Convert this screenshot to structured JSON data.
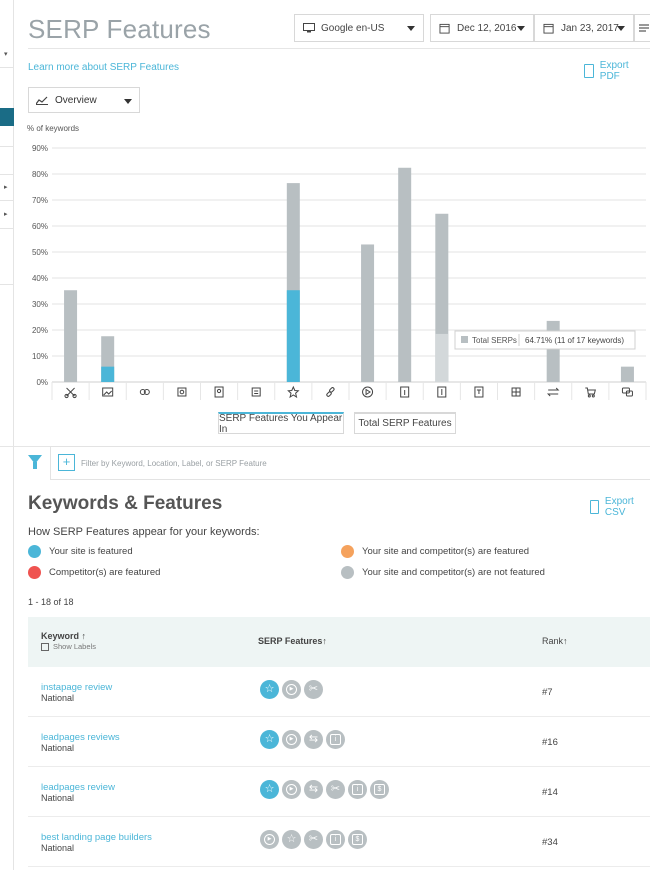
{
  "page": {
    "title": "SERP Features",
    "learn_more": "Learn more about SERP Features",
    "export_pdf": "Export PDF",
    "export_csv": "Export CSV"
  },
  "controls": {
    "engine": "Google en-US",
    "date_from": "Dec 12, 2016",
    "date_to": "Jan 23, 2017",
    "view": "Overview"
  },
  "chart_data": {
    "type": "bar",
    "ylabel": "% of keywords",
    "ylim": [
      0,
      90
    ],
    "yticks": [
      "0%",
      "10%",
      "20%",
      "30%",
      "40%",
      "50%",
      "60%",
      "70%",
      "80%",
      "90%"
    ],
    "categories": [
      "featured-snippet-icon",
      "image-pack-icon",
      "local-pack-icon",
      "reviews-icon",
      "knowledge-panel-icon",
      "news-icon",
      "star-reviews-icon",
      "site-links-icon",
      "video-icon",
      "answer-box-icon",
      "adwords-top-icon",
      "adwords-bottom-icon",
      "carousel-icon",
      "related-questions-icon",
      "shopping-icon",
      "tweets-icon"
    ],
    "series": [
      {
        "name": "Total SERPs",
        "values": [
          35.3,
          17.6,
          0,
          0,
          0,
          0,
          76.5,
          0,
          52.9,
          82.4,
          64.71,
          0,
          0,
          23.5,
          0,
          5.9
        ],
        "color": "#b8bfc2"
      },
      {
        "name": "SERP Features You Appear In",
        "values": [
          0,
          5.9,
          0,
          0,
          0,
          0,
          35.3,
          0,
          0,
          0,
          0,
          0,
          0,
          0,
          0,
          0
        ],
        "color": "#4bb6d8"
      }
    ],
    "tooltip": {
      "label": "Total SERPs",
      "value": "64.71% (11 of 17 keywords)"
    }
  },
  "tabs": [
    "SERP Features You Appear In",
    "Total SERP Features"
  ],
  "filter": {
    "placeholder": "Filter by Keyword, Location, Label, or SERP Feature"
  },
  "section": {
    "heading": "Keywords & Features",
    "description": "How SERP Features appear for your keywords:",
    "legend": [
      {
        "label": "Your site is featured",
        "color": "#4bb6d8"
      },
      {
        "label": "Your site and competitor(s) are featured",
        "color": "#f5a25d"
      },
      {
        "label": "Competitor(s) are featured",
        "color": "#ef5350"
      },
      {
        "label": "Your site and competitor(s) are not featured",
        "color": "#b8bfc2"
      }
    ],
    "count": "1 - 18 of 18"
  },
  "table": {
    "headers": {
      "keyword": "Keyword",
      "features": "SERP Features",
      "rank": "Rank",
      "show_labels": "Show Labels"
    },
    "rows": [
      {
        "keyword": "instapage review",
        "location": "National",
        "rank": "#7",
        "icons": [
          [
            "star",
            "blue"
          ],
          [
            "play",
            "grey"
          ],
          [
            "scissors",
            "grey"
          ]
        ]
      },
      {
        "keyword": "leadpages reviews",
        "location": "National",
        "rank": "#16",
        "icons": [
          [
            "star",
            "blue"
          ],
          [
            "play",
            "grey"
          ],
          [
            "swap",
            "grey"
          ],
          [
            "box",
            "grey"
          ]
        ]
      },
      {
        "keyword": "leadpages review",
        "location": "National",
        "rank": "#14",
        "icons": [
          [
            "star",
            "blue"
          ],
          [
            "play",
            "grey"
          ],
          [
            "swap",
            "grey"
          ],
          [
            "scissors",
            "grey"
          ],
          [
            "box",
            "grey"
          ],
          [
            "dollar",
            "grey"
          ]
        ]
      },
      {
        "keyword": "best landing page builders",
        "location": "National",
        "rank": "#34",
        "icons": [
          [
            "play",
            "grey"
          ],
          [
            "star",
            "grey"
          ],
          [
            "scissors",
            "grey"
          ],
          [
            "box",
            "grey"
          ],
          [
            "dollar",
            "grey"
          ]
        ]
      }
    ]
  }
}
